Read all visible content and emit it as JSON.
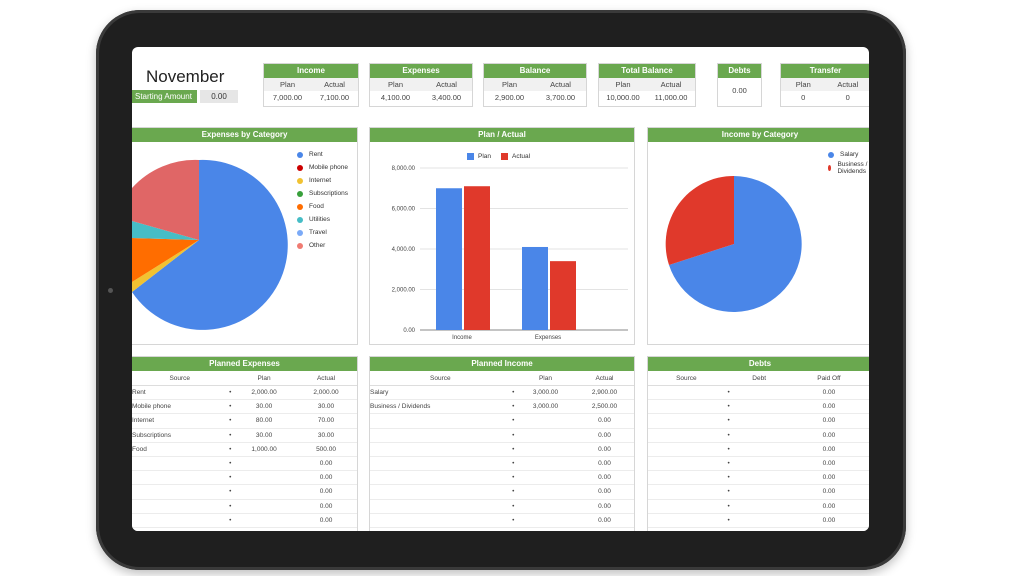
{
  "colors": {
    "green": "#6aa84f",
    "blue": "#4a86e8",
    "red": "#e0392b",
    "orange": "#ff6d00"
  },
  "header": {
    "month": "November",
    "starting_label": "Starting Amount",
    "starting_value": "0.00"
  },
  "summary": [
    {
      "title": "Income",
      "left": "Plan",
      "right": "Actual",
      "lv": "7,000.00",
      "rv": "7,100.00"
    },
    {
      "title": "Expenses",
      "left": "Plan",
      "right": "Actual",
      "lv": "4,100.00",
      "rv": "3,400.00"
    },
    {
      "title": "Balance",
      "left": "Plan",
      "right": "Actual",
      "lv": "2,900.00",
      "rv": "3,700.00"
    },
    {
      "title": "Total Balance",
      "left": "Plan",
      "right": "Actual",
      "lv": "10,000.00",
      "rv": "11,000.00"
    },
    {
      "title": "Debts",
      "left": "",
      "right": "",
      "lv": "0.00",
      "rv": ""
    },
    {
      "title": "Transfer",
      "left": "Plan",
      "right": "Actual",
      "lv": "0",
      "rv": "0"
    }
  ],
  "charts": {
    "expenses_title": "Expenses by Category",
    "plan_actual_title": "Plan / Actual",
    "income_title": "Income by Category",
    "expense_legend": [
      "Rent",
      "Mobile phone",
      "Internet",
      "Subscriptions",
      "Food",
      "Utilities",
      "Travel",
      "Other"
    ],
    "income_legend": [
      "Salary",
      "Business / Dividends"
    ],
    "bar_legend": [
      "Plan",
      "Actual"
    ]
  },
  "chart_data": [
    {
      "type": "pie",
      "title": "Expenses by Category",
      "categories": [
        "Rent",
        "Other",
        "Travel",
        "Food",
        "Mobile phone"
      ],
      "values": [
        62,
        17,
        3,
        14,
        4
      ]
    },
    {
      "type": "bar",
      "title": "Plan / Actual",
      "categories": [
        "Income",
        "Expenses"
      ],
      "series": [
        {
          "name": "Plan",
          "values": [
            7000,
            4100
          ]
        },
        {
          "name": "Actual",
          "values": [
            7100,
            3400
          ]
        }
      ],
      "ylim": [
        0,
        8000
      ],
      "yticks": [
        "0.00",
        "2,000.00",
        "4,000.00",
        "6,000.00",
        "8,000.00"
      ]
    },
    {
      "type": "pie",
      "title": "Income by Category",
      "categories": [
        "Salary",
        "Business / Dividends"
      ],
      "values": [
        70,
        30
      ]
    }
  ],
  "tables": {
    "planned_expenses": {
      "title": "Planned Expenses",
      "cols": [
        "Source",
        "Plan",
        "Actual"
      ],
      "rows": [
        [
          "Rent",
          "•",
          "2,000.00",
          "2,000.00"
        ],
        [
          "Mobile phone",
          "•",
          "30.00",
          "30.00"
        ],
        [
          "Internet",
          "•",
          "80.00",
          "70.00"
        ],
        [
          "Subscriptions",
          "•",
          "30.00",
          "30.00"
        ],
        [
          "Food",
          "•",
          "1,000.00",
          "500.00"
        ],
        [
          "",
          "•",
          "",
          "0.00"
        ],
        [
          "",
          "•",
          "",
          "0.00"
        ],
        [
          "",
          "•",
          "",
          "0.00"
        ],
        [
          "",
          "•",
          "",
          "0.00"
        ],
        [
          "",
          "•",
          "",
          "0.00"
        ],
        [
          "",
          "•",
          "",
          "0.00"
        ]
      ]
    },
    "planned_income": {
      "title": "Planned Income",
      "cols": [
        "Source",
        "Plan",
        "Actual"
      ],
      "rows": [
        [
          "Salary",
          "•",
          "3,000.00",
          "2,900.00"
        ],
        [
          "Business / Dividends",
          "•",
          "3,000.00",
          "2,500.00"
        ],
        [
          "",
          "•",
          "",
          "0.00"
        ],
        [
          "",
          "•",
          "",
          "0.00"
        ],
        [
          "",
          "•",
          "",
          "0.00"
        ],
        [
          "",
          "•",
          "",
          "0.00"
        ],
        [
          "",
          "•",
          "",
          "0.00"
        ],
        [
          "",
          "•",
          "",
          "0.00"
        ],
        [
          "",
          "•",
          "",
          "0.00"
        ],
        [
          "",
          "•",
          "",
          "0.00"
        ],
        [
          "",
          "•",
          "",
          "0.00"
        ]
      ]
    },
    "debts": {
      "title": "Debts",
      "cols": [
        "Source",
        "Debt",
        "Paid Off"
      ],
      "rows": [
        [
          "",
          "•",
          "",
          "0.00"
        ],
        [
          "",
          "•",
          "",
          "0.00"
        ],
        [
          "",
          "•",
          "",
          "0.00"
        ],
        [
          "",
          "•",
          "",
          "0.00"
        ],
        [
          "",
          "•",
          "",
          "0.00"
        ],
        [
          "",
          "•",
          "",
          "0.00"
        ],
        [
          "",
          "•",
          "",
          "0.00"
        ],
        [
          "",
          "•",
          "",
          "0.00"
        ],
        [
          "",
          "•",
          "",
          "0.00"
        ],
        [
          "",
          "•",
          "",
          "0.00"
        ],
        [
          "",
          "•",
          "",
          "0.00"
        ]
      ]
    }
  }
}
